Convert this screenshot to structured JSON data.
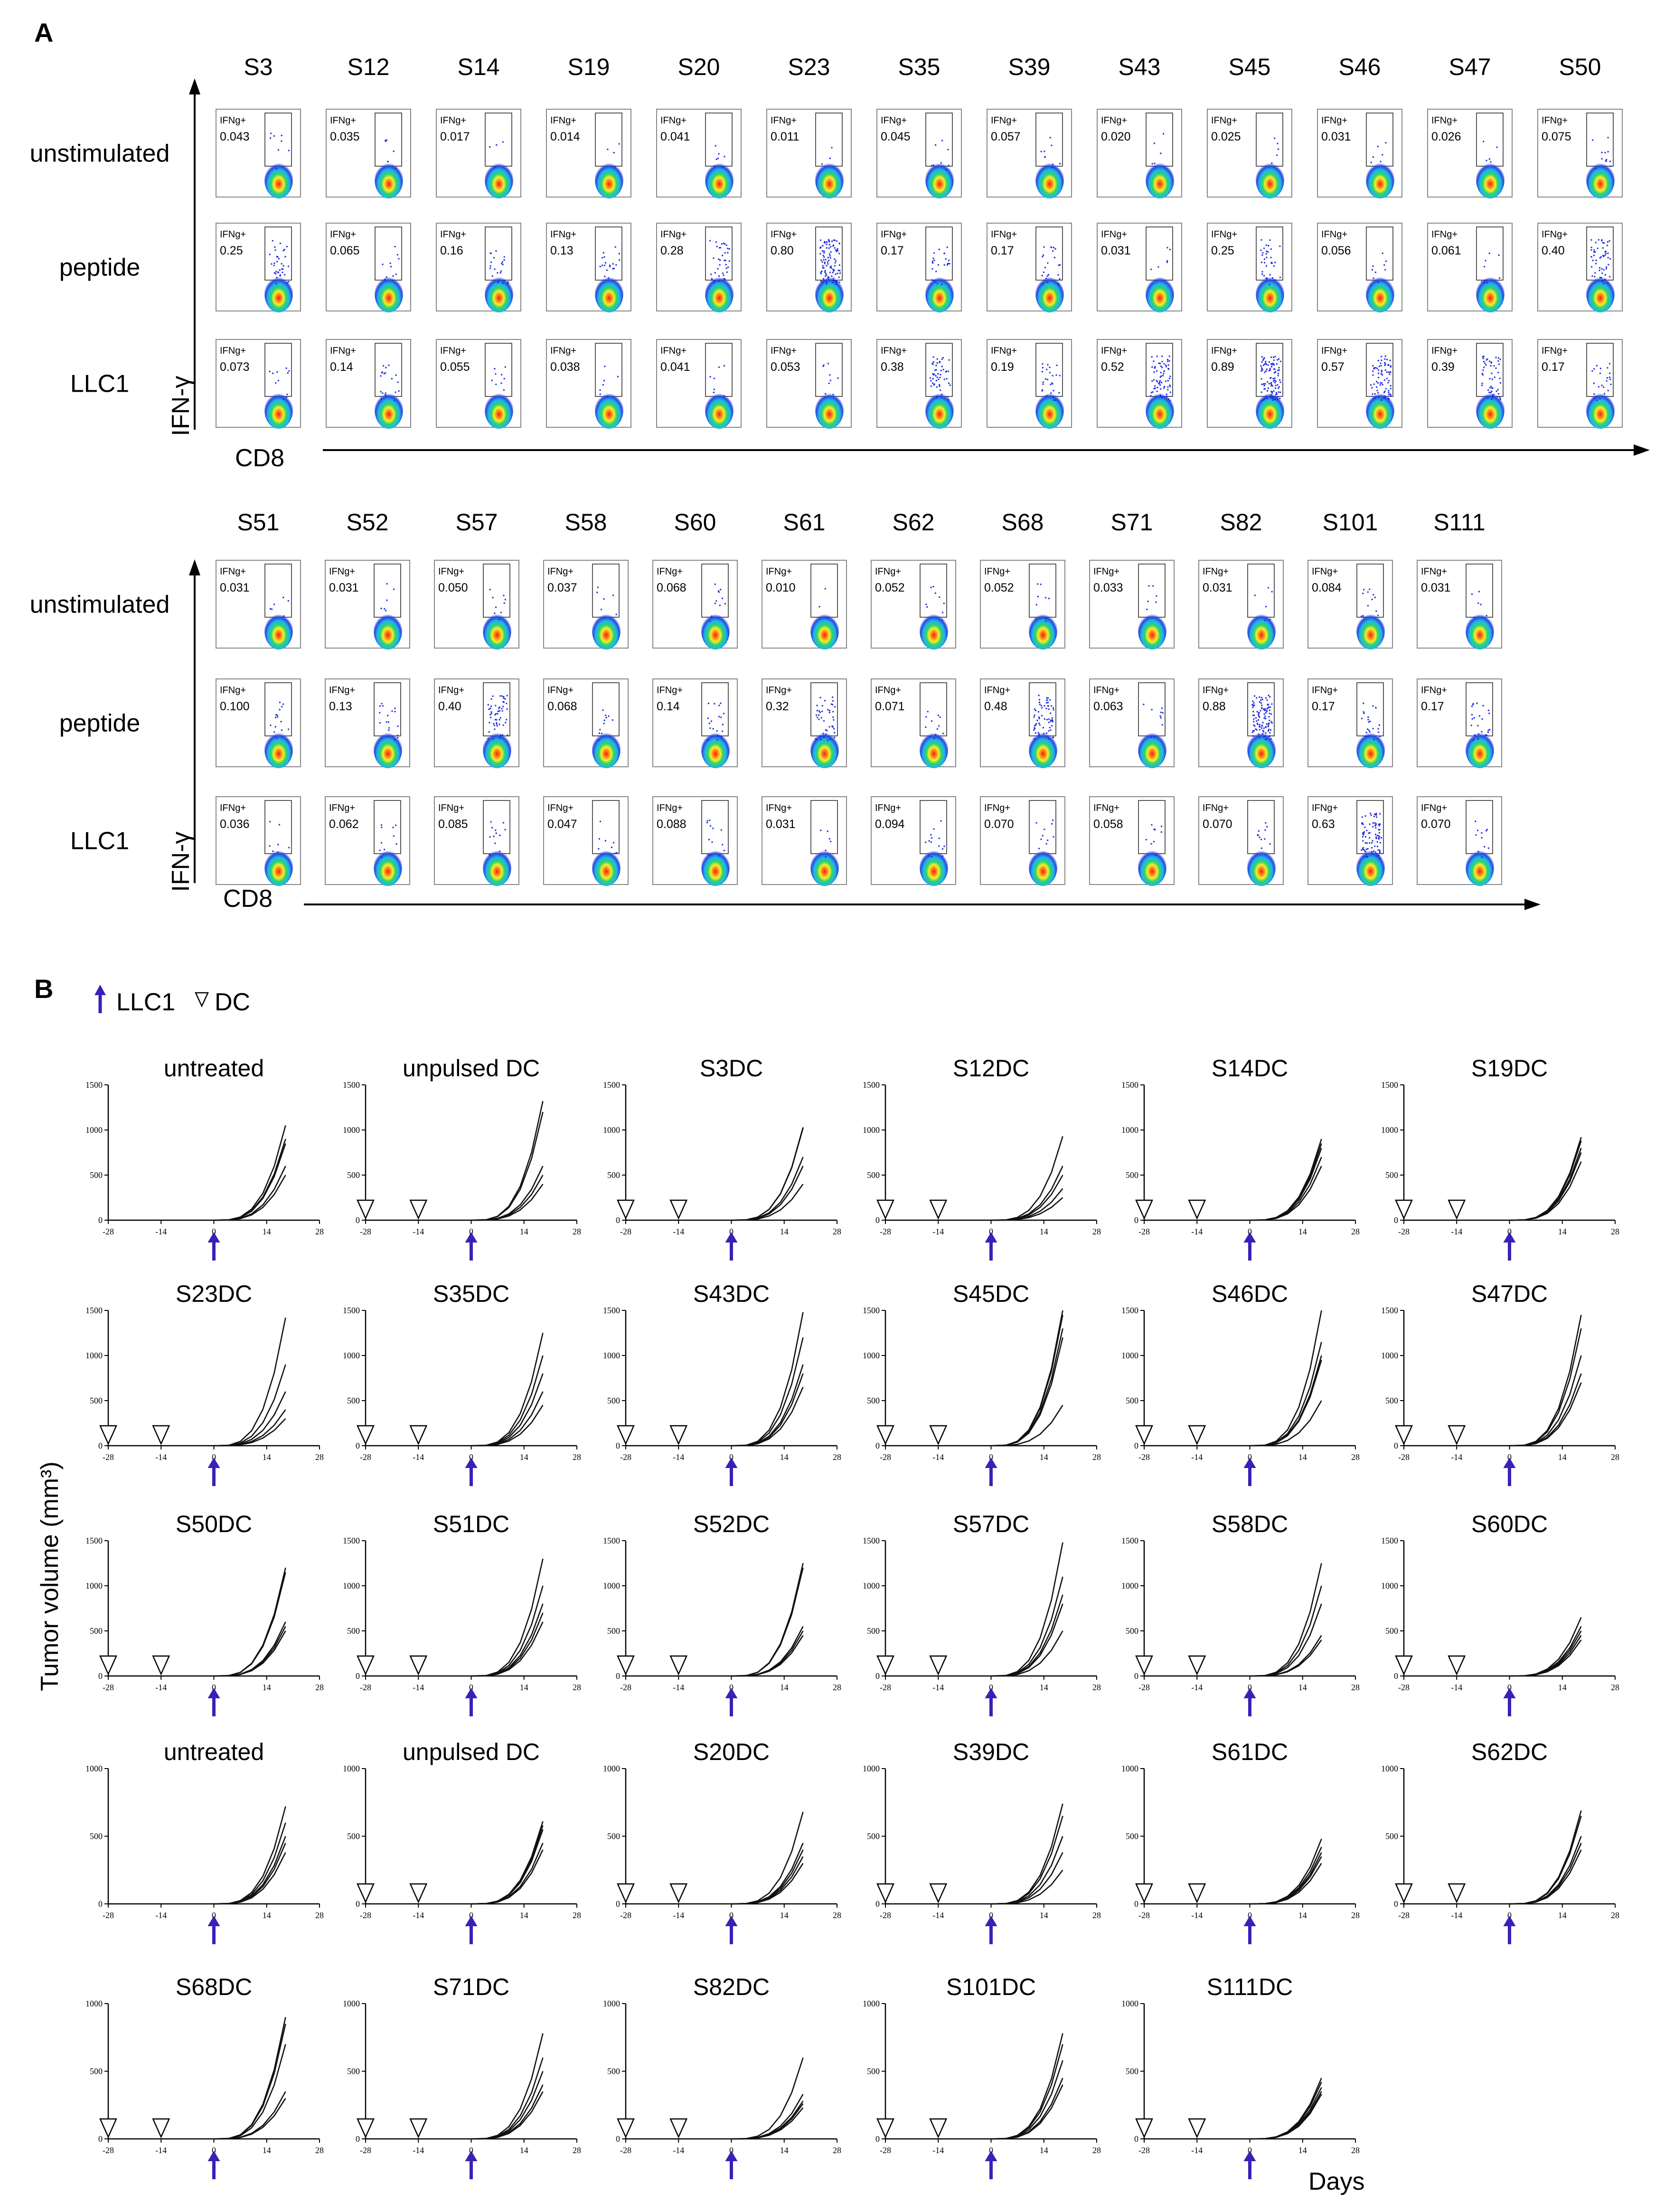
{
  "panel_a": {
    "label": "A",
    "row_labels": [
      "unstimulated",
      "peptide",
      "LLC1"
    ],
    "y_axis_label": "IFN-γ",
    "x_axis_label": "CD8",
    "gate_label": "IFNg+",
    "top": {
      "samples": [
        "S3",
        "S12",
        "S14",
        "S19",
        "S20",
        "S23",
        "S35",
        "S39",
        "S43",
        "S45",
        "S46",
        "S47",
        "S50"
      ],
      "values": {
        "unstimulated": [
          "0.043",
          "0.035",
          "0.017",
          "0.014",
          "0.041",
          "0.011",
          "0.045",
          "0.057",
          "0.020",
          "0.025",
          "0.031",
          "0.026",
          "0.075"
        ],
        "peptide": [
          "0.25",
          "0.065",
          "0.16",
          "0.13",
          "0.28",
          "0.80",
          "0.17",
          "0.17",
          "0.031",
          "0.25",
          "0.056",
          "0.061",
          "0.40"
        ],
        "LLC1": [
          "0.073",
          "0.14",
          "0.055",
          "0.038",
          "0.041",
          "0.053",
          "0.38",
          "0.19",
          "0.52",
          "0.89",
          "0.57",
          "0.39",
          "0.17"
        ]
      }
    },
    "bottom": {
      "samples": [
        "S51",
        "S52",
        "S57",
        "S58",
        "S60",
        "S61",
        "S62",
        "S68",
        "S71",
        "S82",
        "S101",
        "S111"
      ],
      "values": {
        "unstimulated": [
          "0.031",
          "0.031",
          "0.050",
          "0.037",
          "0.068",
          "0.010",
          "0.052",
          "0.052",
          "0.033",
          "0.031",
          "0.084",
          "0.031"
        ],
        "peptide": [
          "0.100",
          "0.13",
          "0.40",
          "0.068",
          "0.14",
          "0.32",
          "0.071",
          "0.48",
          "0.063",
          "0.88",
          "0.17",
          "0.17"
        ],
        "LLC1": [
          "0.036",
          "0.062",
          "0.085",
          "0.047",
          "0.088",
          "0.031",
          "0.094",
          "0.070",
          "0.058",
          "0.070",
          "0.63",
          "0.070"
        ]
      }
    }
  },
  "panel_b": {
    "label": "B",
    "legend": {
      "llc1": "LLC1",
      "dc": "DC"
    },
    "y_axis_label": "Tumor volume (mm³)",
    "x_axis_label": "Days",
    "x_ticks": [
      "-28",
      "-14",
      "0",
      "14",
      "28"
    ],
    "y_ticks_1500": [
      "0",
      "500",
      "1000",
      "1500"
    ],
    "y_ticks_1000": [
      "0",
      "500",
      "1000"
    ],
    "arrow_color": "#3a1fb8",
    "titles": [
      [
        "untreated",
        "unpulsed DC",
        "S3DC",
        "S12DC",
        "S14DC",
        "S19DC"
      ],
      [
        "S23DC",
        "S35DC",
        "S43DC",
        "S45DC",
        "S46DC",
        "S47DC"
      ],
      [
        "S50DC",
        "S51DC",
        "S52DC",
        "S57DC",
        "S58DC",
        "S60DC"
      ],
      [
        "untreated",
        "unpulsed DC",
        "S20DC",
        "S39DC",
        "S61DC",
        "S62DC"
      ],
      [
        "S68DC",
        "S71DC",
        "S82DC",
        "S101DC",
        "S111DC"
      ]
    ]
  },
  "chart_data": {
    "type": "line",
    "x_unit": "days",
    "days": [
      0,
      4,
      7,
      10,
      13,
      16,
      19
    ],
    "y_ranges": [
      [
        0,
        1500
      ],
      [
        0,
        1500
      ],
      [
        0,
        1500
      ],
      [
        0,
        1000
      ],
      [
        0,
        1000
      ]
    ],
    "groups": [
      {
        "title": "untreated",
        "final_volumes": [
          1050,
          900,
          850,
          600,
          500
        ]
      },
      {
        "title": "unpulsed DC",
        "final_volumes": [
          1320,
          1200,
          600,
          500,
          400
        ]
      },
      {
        "title": "S3DC",
        "final_volumes": [
          1030,
          1020,
          700,
          600,
          400
        ]
      },
      {
        "title": "S12DC",
        "final_volumes": [
          930,
          600,
          500,
          350,
          250
        ]
      },
      {
        "title": "S14DC",
        "final_volumes": [
          900,
          850,
          800,
          700,
          600
        ]
      },
      {
        "title": "S19DC",
        "final_volumes": [
          920,
          880,
          800,
          750,
          650
        ]
      },
      {
        "title": "S23DC",
        "final_volumes": [
          1420,
          900,
          600,
          400,
          300
        ]
      },
      {
        "title": "S35DC",
        "final_volumes": [
          1250,
          1000,
          800,
          600,
          450
        ]
      },
      {
        "title": "S43DC",
        "final_volumes": [
          1480,
          1200,
          900,
          800,
          650
        ]
      },
      {
        "title": "S45DC",
        "final_volumes": [
          1500,
          1450,
          1300,
          1200,
          450
        ]
      },
      {
        "title": "S46DC",
        "final_volumes": [
          1500,
          1150,
          1000,
          950,
          500
        ]
      },
      {
        "title": "S47DC",
        "final_volumes": [
          1450,
          1300,
          1000,
          800,
          700
        ]
      },
      {
        "title": "S50DC",
        "final_volumes": [
          1200,
          1150,
          600,
          550,
          500
        ]
      },
      {
        "title": "S51DC",
        "final_volumes": [
          1300,
          1000,
          800,
          700,
          600
        ]
      },
      {
        "title": "S52DC",
        "final_volumes": [
          1250,
          1200,
          550,
          500,
          450
        ]
      },
      {
        "title": "S57DC",
        "final_volumes": [
          1480,
          1100,
          900,
          800,
          500
        ]
      },
      {
        "title": "S58DC",
        "final_volumes": [
          1250,
          1000,
          800,
          450,
          400
        ]
      },
      {
        "title": "S60DC",
        "final_volumes": [
          650,
          550,
          500,
          450,
          400
        ]
      },
      {
        "title": "untreated",
        "final_volumes": [
          720,
          600,
          500,
          450,
          380
        ]
      },
      {
        "title": "unpulsed DC",
        "final_volumes": [
          610,
          580,
          550,
          450,
          400
        ]
      },
      {
        "title": "S20DC",
        "final_volumes": [
          680,
          450,
          400,
          350,
          300
        ]
      },
      {
        "title": "S39DC",
        "final_volumes": [
          740,
          650,
          500,
          380,
          250
        ]
      },
      {
        "title": "S61DC",
        "final_volumes": [
          480,
          420,
          380,
          350,
          300
        ]
      },
      {
        "title": "S62DC",
        "final_volumes": [
          690,
          650,
          500,
          450,
          400
        ]
      },
      {
        "title": "S68DC",
        "final_volumes": [
          900,
          850,
          700,
          350,
          300
        ]
      },
      {
        "title": "S71DC",
        "final_volumes": [
          780,
          600,
          500,
          400,
          350
        ]
      },
      {
        "title": "S82DC",
        "final_volumes": [
          600,
          330,
          280,
          260,
          230
        ]
      },
      {
        "title": "S101DC",
        "final_volumes": [
          780,
          700,
          580,
          450,
          400
        ]
      },
      {
        "title": "S111DC",
        "final_volumes": [
          450,
          420,
          380,
          350,
          330
        ]
      }
    ]
  }
}
